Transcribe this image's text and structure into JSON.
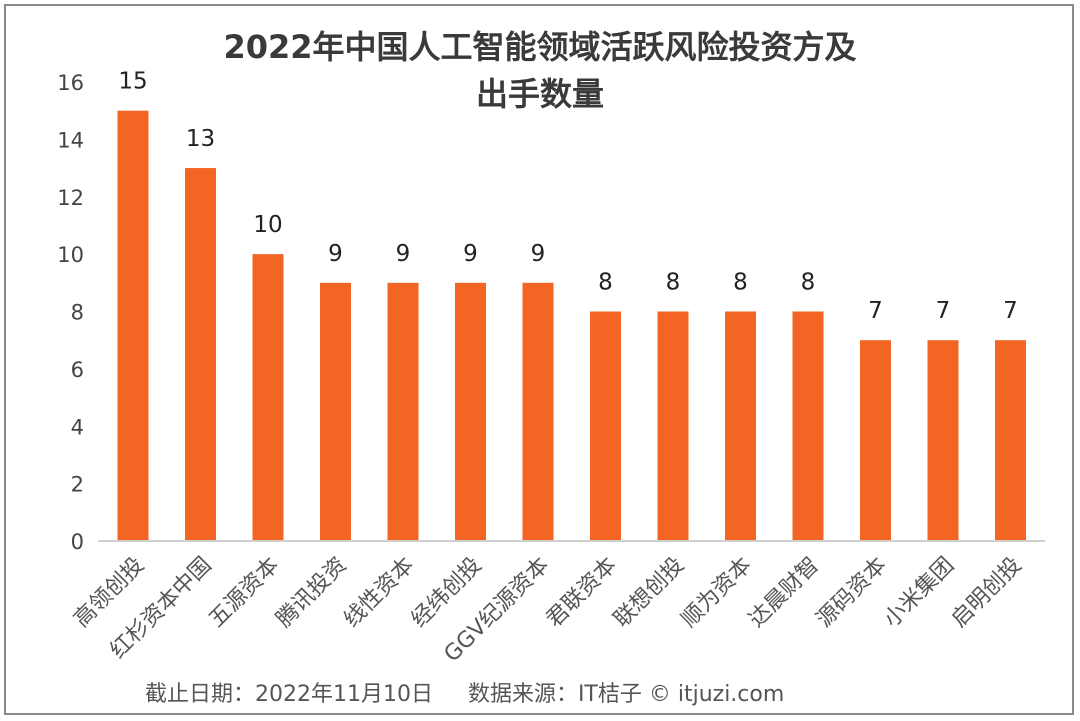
{
  "chart_data": {
    "type": "bar",
    "title_lines": [
      "2022年中国人工智能领域活跃风险投资方及",
      "出手数量"
    ],
    "categories": [
      "高领创投",
      "红杉资本中国",
      "五源资本",
      "腾讯投资",
      "线性资本",
      "经纬创投",
      "GGV纪源资本",
      "君联资本",
      "联想创投",
      "顺为资本",
      "达晨财智",
      "源码资本",
      "小米集团",
      "启明创投"
    ],
    "values": [
      15,
      13,
      10,
      9,
      9,
      9,
      9,
      8,
      8,
      8,
      8,
      7,
      7,
      7
    ],
    "ylim": [
      0,
      16
    ],
    "yticks": [
      0,
      2,
      4,
      6,
      8,
      10,
      12,
      14,
      16
    ],
    "grid": false,
    "bar_color": "#F26522",
    "data_labels": true
  },
  "footer": "截止日期：2022年11月10日     数据来源：IT桔子 © itjuzi.com"
}
